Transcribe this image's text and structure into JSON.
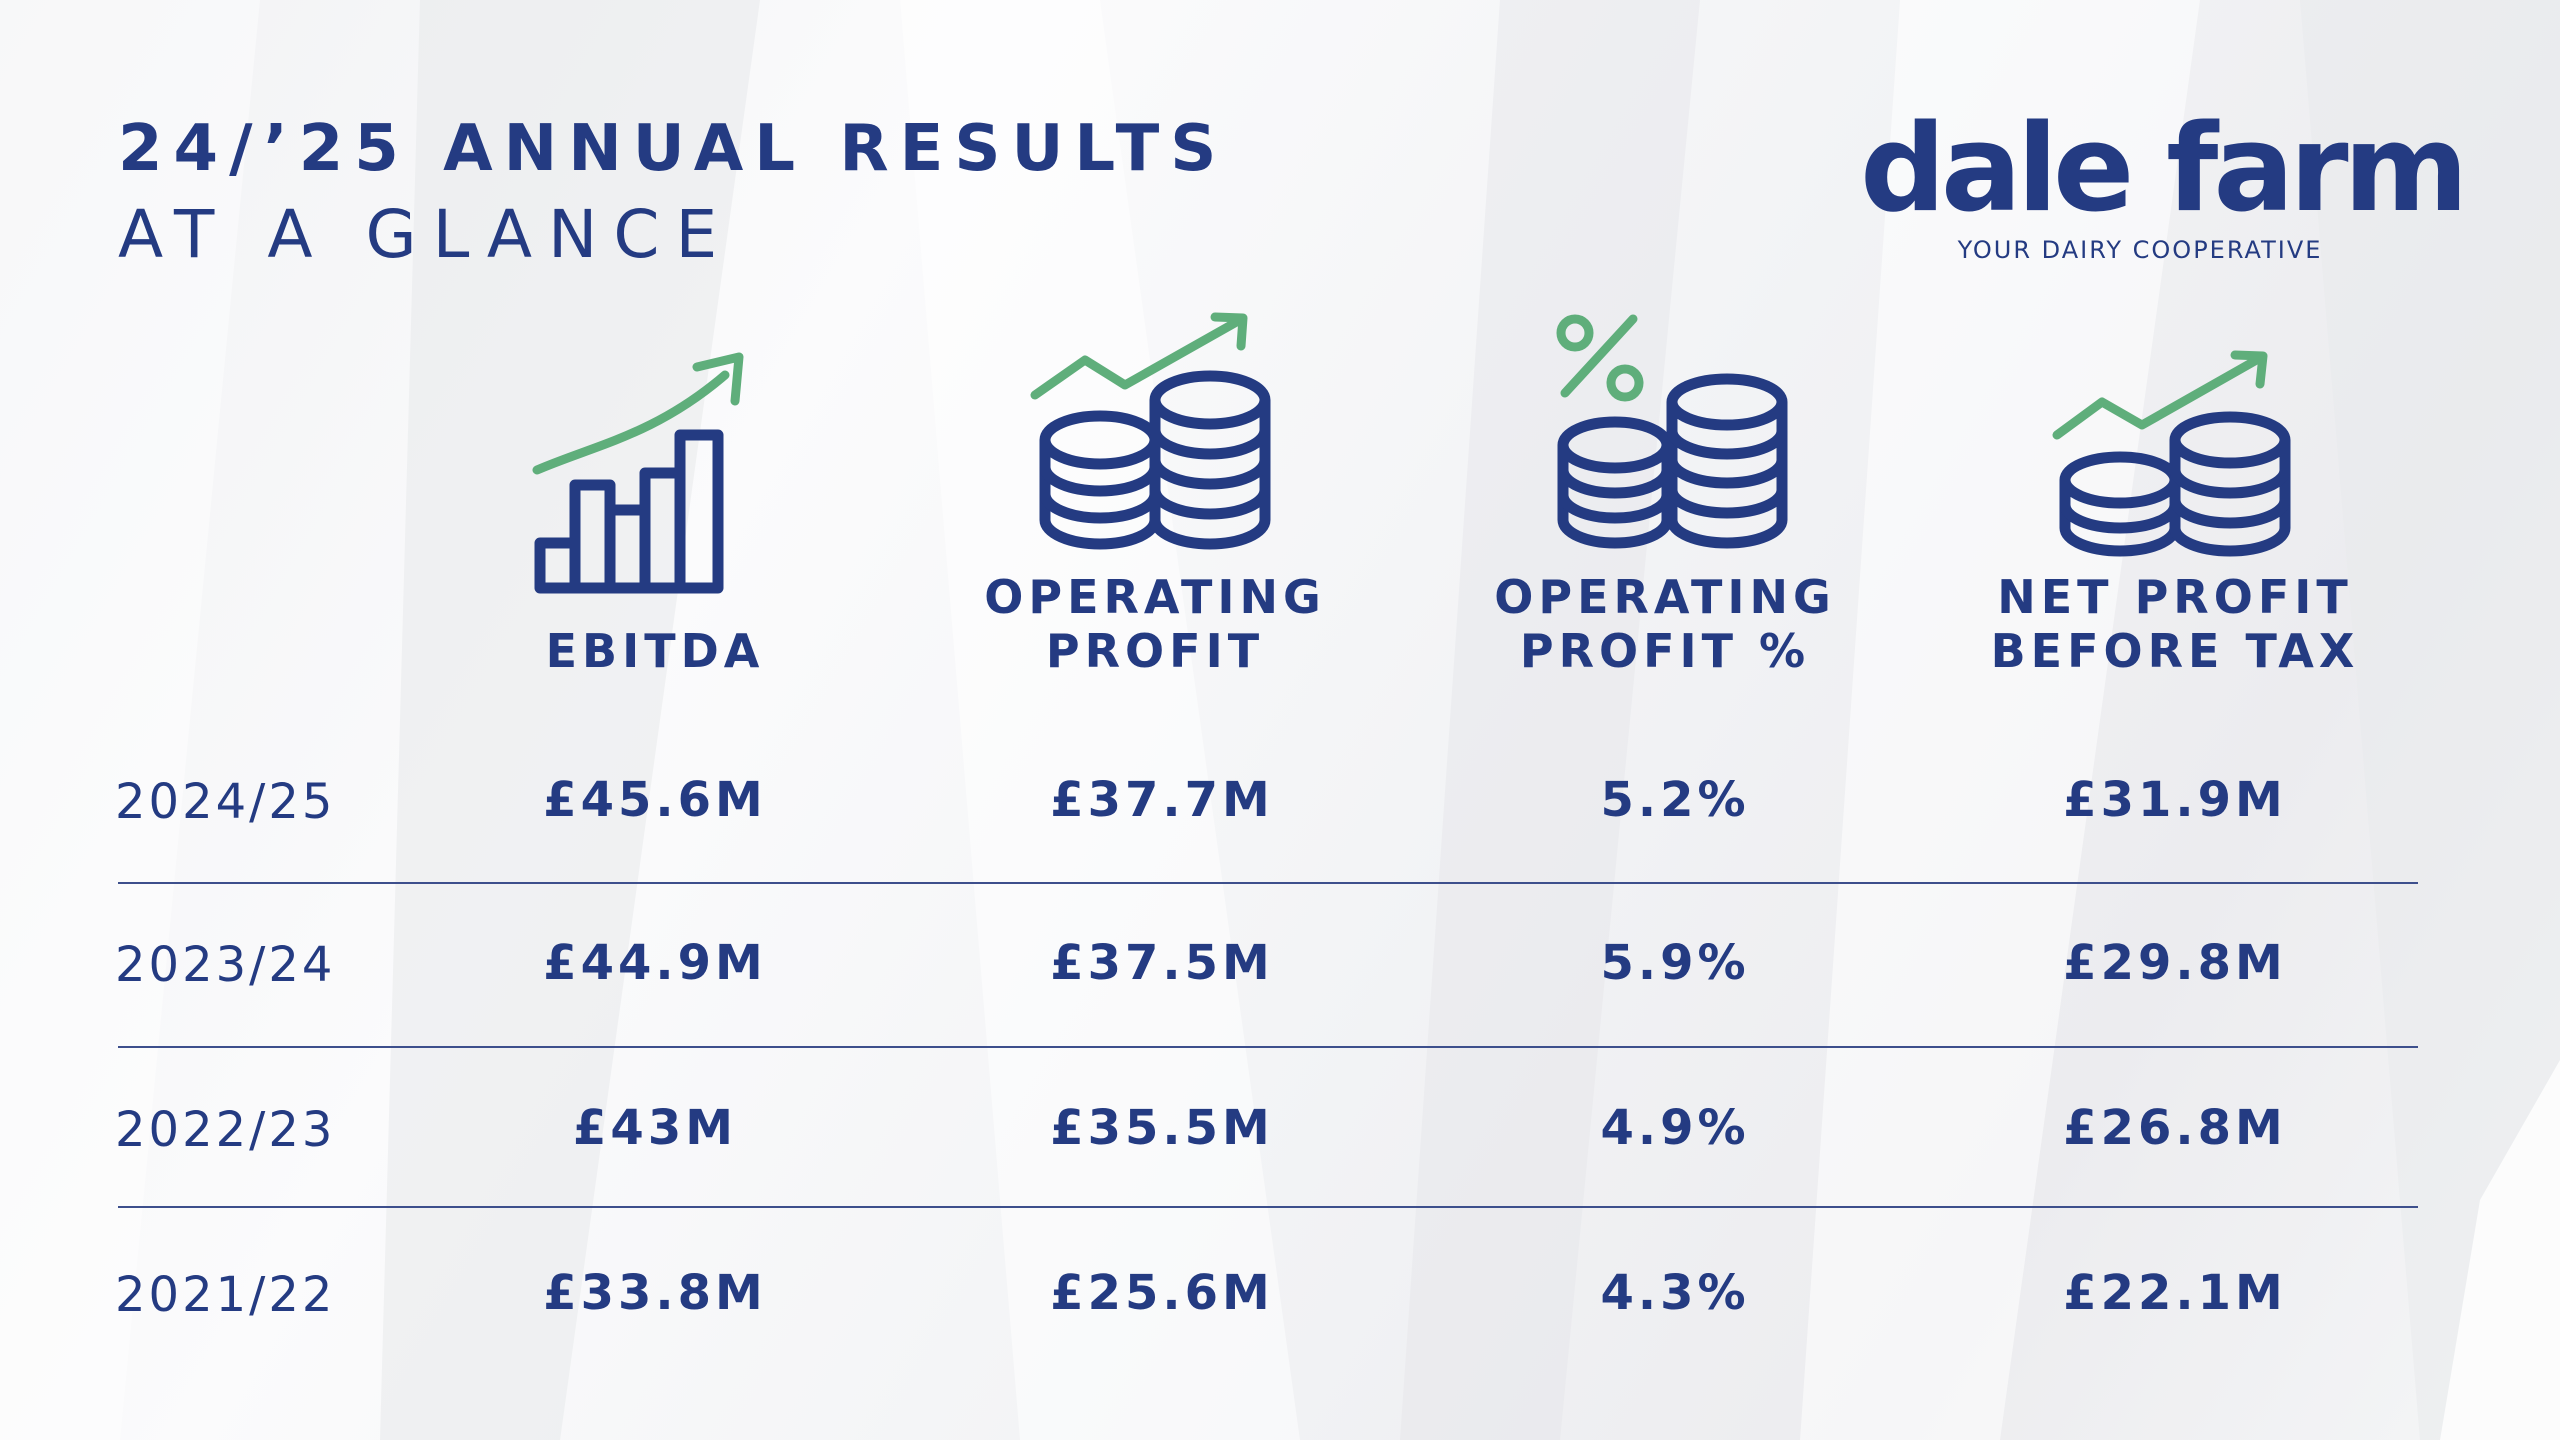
{
  "title": {
    "line1": "24/’25 ANNUAL RESULTS",
    "line2": "AT A GLANCE"
  },
  "logo": {
    "wordmark": "dale farm",
    "tagline": "YOUR DAIRY COOPERATIVE"
  },
  "colors": {
    "navy": "#243b82",
    "green": "#5fae7b",
    "divider": "#3d4f8c"
  },
  "columns": [
    {
      "lines": [
        "EBITDA"
      ],
      "icon": "bar-chart-growth-icon"
    },
    {
      "lines": [
        "OPERATING",
        "PROFIT"
      ],
      "icon": "coins-growth-icon"
    },
    {
      "lines": [
        "OPERATING",
        "PROFIT %"
      ],
      "icon": "coins-percent-icon"
    },
    {
      "lines": [
        "NET PROFIT",
        "BEFORE TAX"
      ],
      "icon": "coins-trend-icon"
    }
  ],
  "rows": [
    {
      "year": "2024/25",
      "values": [
        "£45.6M",
        "£37.7M",
        "5.2%",
        "£31.9M"
      ]
    },
    {
      "year": "2023/24",
      "values": [
        "£44.9M",
        "£37.5M",
        "5.9%",
        "£29.8M"
      ]
    },
    {
      "year": "2022/23",
      "values": [
        "£43M",
        "£35.5M",
        "4.9%",
        "£26.8M"
      ]
    },
    {
      "year": "2021/22",
      "values": [
        "£33.8M",
        "£25.6M",
        "4.3%",
        "£22.1M"
      ]
    }
  ]
}
